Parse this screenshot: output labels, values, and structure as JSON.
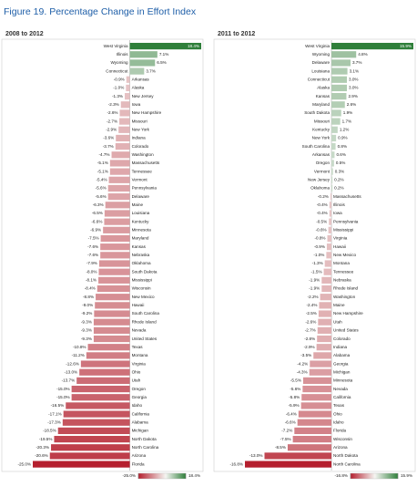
{
  "title": "Figure 19. Percentage Change in Effort Index",
  "colors": {
    "negative": "#b51f2e",
    "neutral": "#f5f5f2",
    "positive": "#2f7f3a",
    "title": "#1f5fa8"
  },
  "chart_data": [
    {
      "type": "bar",
      "orientation": "horizontal",
      "subtitle": "2008 to 2012",
      "categories": [
        "West Virginia",
        "Illinois",
        "Wyoming",
        "Connecticut",
        "Arkansas",
        "Alaska",
        "New Jersey",
        "Iowa",
        "New Hampshire",
        "Missouri",
        "New York",
        "Indiana",
        "Colorado",
        "Washington",
        "Massachusetts",
        "Tennessee",
        "Vermont",
        "Pennsylvania",
        "Delaware",
        "Maine",
        "Louisiana",
        "Kentucky",
        "Minnesota",
        "Maryland",
        "Kansas",
        "Nebraska",
        "Oklahoma",
        "South Dakota",
        "Mississippi",
        "Wisconsin",
        "New Mexico",
        "Hawaii",
        "South Carolina",
        "Rhode Island",
        "Nevada",
        "United States",
        "Texas",
        "Montana",
        "Virginia",
        "Ohio",
        "Utah",
        "Oregon",
        "Georgia",
        "Idaho",
        "California",
        "Alabama",
        "Michigan",
        "North Dakota",
        "North Carolina",
        "Arizona",
        "Florida"
      ],
      "values": [
        18.4,
        7.1,
        6.5,
        3.7,
        -0.9,
        -1.0,
        -1.3,
        -2.3,
        -2.6,
        -2.7,
        -2.9,
        -3.6,
        -3.7,
        -4.7,
        -5.1,
        -5.1,
        -5.4,
        -5.6,
        -5.6,
        -6.3,
        -6.5,
        -6.6,
        -6.9,
        -7.5,
        -7.6,
        -7.6,
        -7.9,
        -8.0,
        -8.1,
        -8.4,
        -8.8,
        -9.0,
        -9.2,
        -9.3,
        -9.3,
        -9.3,
        -10.8,
        -11.2,
        -12.6,
        -13.0,
        -13.7,
        -15.0,
        -15.0,
        -16.5,
        -17.1,
        -17.3,
        -18.5,
        -19.5,
        -20.3,
        -20.6,
        -25.0
      ],
      "value_labels": [
        "18.4%",
        "7.1%",
        "6.5%",
        "3.7%",
        "-0.9%",
        "-1.0%",
        "-1.3%",
        "-2.3%",
        "-2.6%",
        "-2.7%",
        "-2.9%",
        "-3.6%",
        "-3.7%",
        "-4.7%",
        "-5.1%",
        "-5.1%",
        "-5.4%",
        "-5.6%",
        "-5.6%",
        "-6.3%",
        "-6.5%",
        "-6.6%",
        "-6.9%",
        "-7.5%",
        "-7.6%",
        "-7.6%",
        "-7.9%",
        "-8.0%",
        "-8.1%",
        "-8.4%",
        "-8.8%",
        "-9.0%",
        "-9.2%",
        "-9.3%",
        "-9.3%",
        "-9.3%",
        "-10.8%",
        "-11.2%",
        "-12.6%",
        "-13.0%",
        "-13.7%",
        "-15.0%",
        "-15.0%",
        "-16.5%",
        "-17.1%",
        "-17.3%",
        "-18.5%",
        "-19.5%",
        "-20.3%",
        "-20.6%",
        "-25.0%"
      ],
      "colorscale": {
        "min": {
          "value": -25.0,
          "label": "-25.0%"
        },
        "max": {
          "value": 18.4,
          "label": "18.4%"
        }
      }
    },
    {
      "type": "bar",
      "orientation": "horizontal",
      "subtitle": "2011 to 2012",
      "categories": [
        "West Virginia",
        "Wyoming",
        "Delaware",
        "Louisiana",
        "Connecticut",
        "Alaska",
        "Kansas",
        "Maryland",
        "South Dakota",
        "Missouri",
        "Kentucky",
        "New York",
        "South Carolina",
        "Arkansas",
        "Oregon",
        "Vermont",
        "New Jersey",
        "Oklahoma",
        "Massachusetts",
        "Illinois",
        "Iowa",
        "Pennsylvania",
        "Mississippi",
        "Virginia",
        "Hawaii",
        "New Mexico",
        "Montana",
        "Tennessee",
        "Nebraska",
        "Rhode Island",
        "Washington",
        "Maine",
        "New Hampshire",
        "Utah",
        "United States",
        "Colorado",
        "Indiana",
        "Alabama",
        "Georgia",
        "Michigan",
        "Minnesota",
        "Nevada",
        "California",
        "Texas",
        "Ohio",
        "Idaho",
        "Florida",
        "Wisconsin",
        "Arizona",
        "North Dakota",
        "North Carolina"
      ],
      "values": [
        15.9,
        4.8,
        3.7,
        3.1,
        3.0,
        3.0,
        2.9,
        2.6,
        1.9,
        1.7,
        1.2,
        0.9,
        0.8,
        0.6,
        0.5,
        0.3,
        0.2,
        0.2,
        -0.2,
        -0.4,
        -0.4,
        -0.5,
        -0.6,
        -0.8,
        -0.9,
        -1.0,
        -1.3,
        -1.5,
        -1.9,
        -1.9,
        -2.2,
        -2.4,
        -2.5,
        -2.6,
        -2.7,
        -2.8,
        -2.9,
        -3.5,
        -4.2,
        -4.3,
        -5.5,
        -5.6,
        -5.8,
        -5.9,
        -6.4,
        -6.6,
        -7.2,
        -7.5,
        -8.5,
        -13.0,
        -16.8
      ],
      "value_labels": [
        "15.9%",
        "4.8%",
        "3.7%",
        "3.1%",
        "3.0%",
        "3.0%",
        "2.9%",
        "2.6%",
        "1.9%",
        "1.7%",
        "1.2%",
        "0.9%",
        "0.8%",
        "0.6%",
        "0.5%",
        "0.3%",
        "0.2%",
        "0.2%",
        "-0.2%",
        "-0.4%",
        "-0.4%",
        "-0.5%",
        "-0.6%",
        "-0.8%",
        "-0.9%",
        "-1.0%",
        "-1.3%",
        "-1.5%",
        "-1.9%",
        "-1.9%",
        "-2.2%",
        "-2.4%",
        "-2.5%",
        "-2.6%",
        "-2.7%",
        "-2.8%",
        "-2.9%",
        "-3.5%",
        "-4.2%",
        "-4.3%",
        "-5.5%",
        "-5.6%",
        "-5.8%",
        "-5.9%",
        "-6.4%",
        "-6.6%",
        "-7.2%",
        "-7.5%",
        "-8.5%",
        "-13.0%",
        "-16.8%"
      ],
      "colorscale": {
        "min": {
          "value": -16.8,
          "label": "-16.8%"
        },
        "max": {
          "value": 15.9,
          "label": "15.9%"
        }
      }
    }
  ]
}
